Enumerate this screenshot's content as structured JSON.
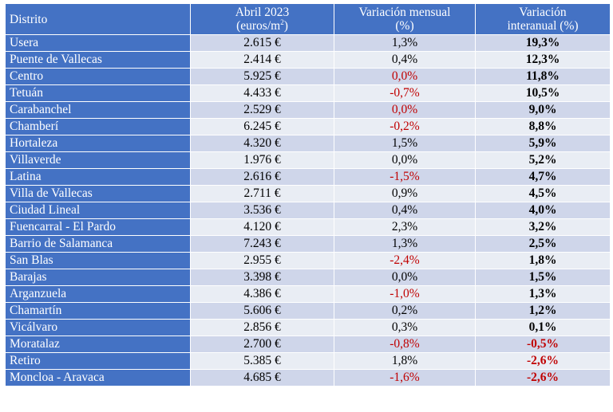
{
  "header": {
    "district": "Distrito",
    "price_line1": "Abril 2023",
    "price_line2_pre": "(euros/m",
    "price_line2_sup": "2",
    "price_line2_post": ")",
    "monthly_line1": "Variación mensual",
    "monthly_line2": "(%)",
    "annual_line1": "Variación",
    "annual_line2": "interanual (%)"
  },
  "negative_color": "#c00000",
  "header_color": "#4472c4",
  "rows": [
    {
      "district": "Usera",
      "price": "2.615 €",
      "monthly": "1,3%",
      "monthly_neg": false,
      "annual": "19,3%",
      "annual_neg": false
    },
    {
      "district": "Puente de Vallecas",
      "price": "2.414 €",
      "monthly": "0,4%",
      "monthly_neg": false,
      "annual": "12,3%",
      "annual_neg": false
    },
    {
      "district": "Centro",
      "price": "5.925 €",
      "monthly": "0,0%",
      "monthly_neg": true,
      "annual": "11,8%",
      "annual_neg": false
    },
    {
      "district": "Tetuán",
      "price": "4.433 €",
      "monthly": "-0,7%",
      "monthly_neg": true,
      "annual": "10,5%",
      "annual_neg": false
    },
    {
      "district": "Carabanchel",
      "price": "2.529 €",
      "monthly": "0,0%",
      "monthly_neg": true,
      "annual": "9,0%",
      "annual_neg": false
    },
    {
      "district": "Chamberí",
      "price": "6.245 €",
      "monthly": "-0,2%",
      "monthly_neg": true,
      "annual": "8,8%",
      "annual_neg": false
    },
    {
      "district": "Hortaleza",
      "price": "4.320 €",
      "monthly": "1,5%",
      "monthly_neg": false,
      "annual": "5,9%",
      "annual_neg": false
    },
    {
      "district": "Villaverde",
      "price": "1.976 €",
      "monthly": "0,0%",
      "monthly_neg": false,
      "annual": "5,2%",
      "annual_neg": false
    },
    {
      "district": "Latina",
      "price": "2.616 €",
      "monthly": "-1,5%",
      "monthly_neg": true,
      "annual": "4,7%",
      "annual_neg": false
    },
    {
      "district": "Villa de Vallecas",
      "price": "2.711 €",
      "monthly": "0,9%",
      "monthly_neg": false,
      "annual": "4,5%",
      "annual_neg": false
    },
    {
      "district": "Ciudad Lineal",
      "price": "3.536 €",
      "monthly": "0,4%",
      "monthly_neg": false,
      "annual": "4,0%",
      "annual_neg": false
    },
    {
      "district": "Fuencarral - El Pardo",
      "price": "4.120 €",
      "monthly": "2,3%",
      "monthly_neg": false,
      "annual": "3,2%",
      "annual_neg": false
    },
    {
      "district": "Barrio de Salamanca",
      "price": "7.243 €",
      "monthly": "1,3%",
      "monthly_neg": false,
      "annual": "2,5%",
      "annual_neg": false
    },
    {
      "district": "San Blas",
      "price": "2.955 €",
      "monthly": "-2,4%",
      "monthly_neg": true,
      "annual": "1,8%",
      "annual_neg": false
    },
    {
      "district": "Barajas",
      "price": "3.398 €",
      "monthly": "0,0%",
      "monthly_neg": false,
      "annual": "1,5%",
      "annual_neg": false
    },
    {
      "district": "Arganzuela",
      "price": "4.386 €",
      "monthly": "-1,0%",
      "monthly_neg": true,
      "annual": "1,3%",
      "annual_neg": false
    },
    {
      "district": "Chamartín",
      "price": "5.606 €",
      "monthly": "0,2%",
      "monthly_neg": false,
      "annual": "1,2%",
      "annual_neg": false
    },
    {
      "district": "Vicálvaro",
      "price": "2.856 €",
      "monthly": "0,3%",
      "monthly_neg": false,
      "annual": "0,1%",
      "annual_neg": false
    },
    {
      "district": "Moratalaz",
      "price": "2.700 €",
      "monthly": "-0,8%",
      "monthly_neg": true,
      "annual": "-0,5%",
      "annual_neg": true
    },
    {
      "district": "Retiro",
      "price": "5.385 €",
      "monthly": "1,8%",
      "monthly_neg": false,
      "annual": "-2,6%",
      "annual_neg": true
    },
    {
      "district": "Moncloa - Aravaca",
      "price": "4.685 €",
      "monthly": "-1,6%",
      "monthly_neg": true,
      "annual": "-2,6%",
      "annual_neg": true
    }
  ]
}
